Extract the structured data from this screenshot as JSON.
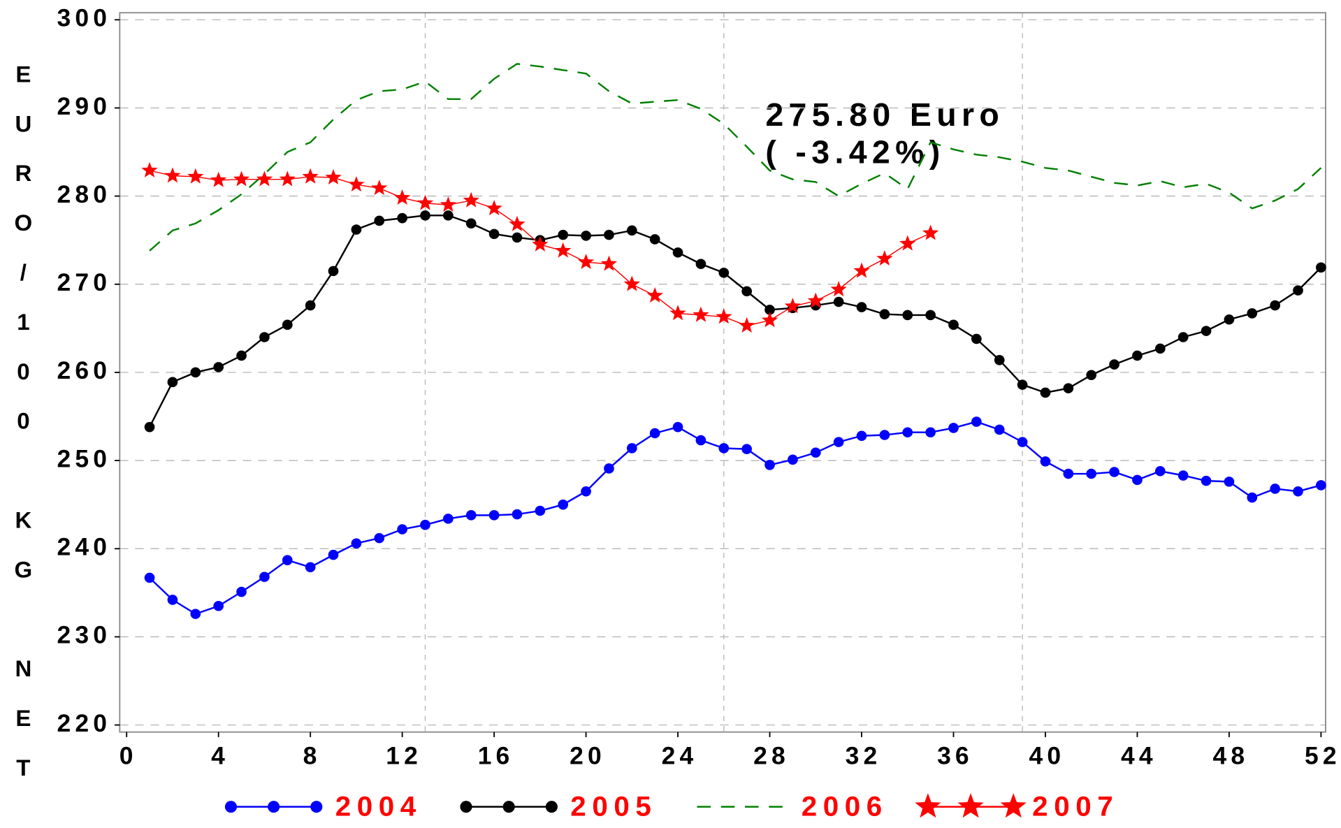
{
  "chart_data": {
    "type": "line",
    "y_label": "EURO/100 KG NET",
    "annotations": [
      "275.80 Euro",
      "(  -3.42%)"
    ],
    "xlim": [
      -0.3,
      52.2
    ],
    "xticks": [
      0,
      4,
      8,
      12,
      16,
      20,
      24,
      28,
      32,
      36,
      40,
      44,
      48,
      52
    ],
    "ylim": [
      219.2,
      300.8
    ],
    "yticks": [
      220,
      230,
      240,
      250,
      260,
      270,
      280,
      290,
      300
    ],
    "xgrid": [
      13,
      26,
      39
    ],
    "grid": true,
    "x": [
      1,
      2,
      3,
      4,
      5,
      6,
      7,
      8,
      9,
      10,
      11,
      12,
      13,
      14,
      15,
      16,
      17,
      18,
      19,
      20,
      21,
      22,
      23,
      24,
      25,
      26,
      27,
      28,
      29,
      30,
      31,
      32,
      33,
      34,
      35,
      36,
      37,
      38,
      39,
      40,
      41,
      42,
      43,
      44,
      45,
      46,
      47,
      48,
      49,
      50,
      51,
      52
    ],
    "series": [
      {
        "name": "2004",
        "color": "#0000ff",
        "marker": "circle",
        "dash": false,
        "values": [
          236.7,
          234.2,
          232.6,
          233.5,
          235.1,
          236.8,
          238.7,
          237.9,
          239.3,
          240.6,
          241.2,
          242.2,
          242.7,
          243.4,
          243.8,
          243.8,
          243.9,
          244.3,
          245.0,
          246.5,
          249.1,
          251.4,
          253.1,
          253.8,
          252.3,
          251.4,
          251.3,
          249.5,
          250.1,
          250.9,
          252.1,
          252.8,
          252.9,
          253.2,
          253.2,
          253.7,
          254.4,
          253.5,
          252.1,
          249.9,
          248.5,
          248.5,
          248.7,
          247.8,
          248.8,
          248.3,
          247.7,
          247.6,
          245.8,
          246.8,
          246.5,
          247.2
        ]
      },
      {
        "name": "2005",
        "color": "#000000",
        "marker": "circle",
        "dash": false,
        "values": [
          253.8,
          258.9,
          260.0,
          260.6,
          261.9,
          264.0,
          265.4,
          267.6,
          271.5,
          276.2,
          277.2,
          277.5,
          277.8,
          277.8,
          276.9,
          275.7,
          275.3,
          275.0,
          275.6,
          275.5,
          275.6,
          276.1,
          275.1,
          273.6,
          272.3,
          271.3,
          269.2,
          267.1,
          267.3,
          267.6,
          268.0,
          267.4,
          266.6,
          266.5,
          266.5,
          265.4,
          263.8,
          261.4,
          258.6,
          257.7,
          258.2,
          259.7,
          260.9,
          261.9,
          262.7,
          264.0,
          264.7,
          266.0,
          266.7,
          267.6,
          269.3,
          271.9
        ]
      },
      {
        "name": "2006",
        "color": "#008000",
        "marker": "none",
        "dash": true,
        "values": [
          273.8,
          276.1,
          276.9,
          278.4,
          280.2,
          282.5,
          285.0,
          286.1,
          288.7,
          290.9,
          291.9,
          292.1,
          293.0,
          291.0,
          291.0,
          293.3,
          295.0,
          294.7,
          294.3,
          293.9,
          291.9,
          290.5,
          290.7,
          290.9,
          289.9,
          288.2,
          285.6,
          282.9,
          281.9,
          281.6,
          280.0,
          281.4,
          282.6,
          280.8,
          286.1,
          285.3,
          284.7,
          284.4,
          283.9,
          283.2,
          282.9,
          282.2,
          281.5,
          281.2,
          281.7,
          281.0,
          281.4,
          280.4,
          278.6,
          279.5,
          280.8,
          283.2
        ]
      },
      {
        "name": "2007",
        "color": "#ff0000",
        "marker": "star",
        "dash": false,
        "values": [
          282.9,
          282.3,
          282.2,
          281.8,
          281.9,
          281.9,
          281.9,
          282.2,
          282.1,
          281.3,
          280.9,
          279.8,
          279.2,
          279.0,
          279.5,
          278.6,
          276.8,
          274.5,
          273.8,
          272.5,
          272.3,
          270.0,
          268.7,
          266.7,
          266.5,
          266.3,
          265.3,
          265.9,
          267.5,
          268.1,
          269.4,
          271.5,
          272.9,
          274.6,
          275.8,
          null,
          null,
          null,
          null,
          null,
          null,
          null,
          null,
          null,
          null,
          null,
          null,
          null,
          null,
          null,
          null,
          null
        ]
      }
    ]
  }
}
